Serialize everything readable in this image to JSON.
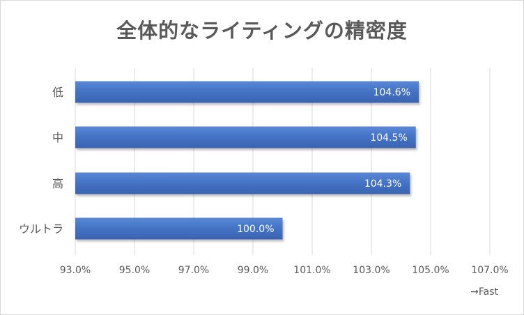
{
  "chart_data": {
    "type": "bar",
    "orientation": "horizontal",
    "title": "全体的なライティングの精密度",
    "categories": [
      "低",
      "中",
      "高",
      "ウルトラ"
    ],
    "values": [
      104.6,
      104.5,
      104.3,
      100.0
    ],
    "data_labels": [
      "104.6%",
      "104.5%",
      "104.3%",
      "100.0%"
    ],
    "xlim": [
      93.0,
      107.0
    ],
    "x_ticks": [
      93.0,
      95.0,
      97.0,
      99.0,
      101.0,
      103.0,
      105.0,
      107.0
    ],
    "x_tick_labels": [
      "93.0%",
      "95.0%",
      "97.0%",
      "99.0%",
      "101.0%",
      "103.0%",
      "105.0%",
      "107.0%"
    ],
    "axis_note": "→Fast",
    "grid": true,
    "legend": "none",
    "bar_color": "#4472c4"
  }
}
